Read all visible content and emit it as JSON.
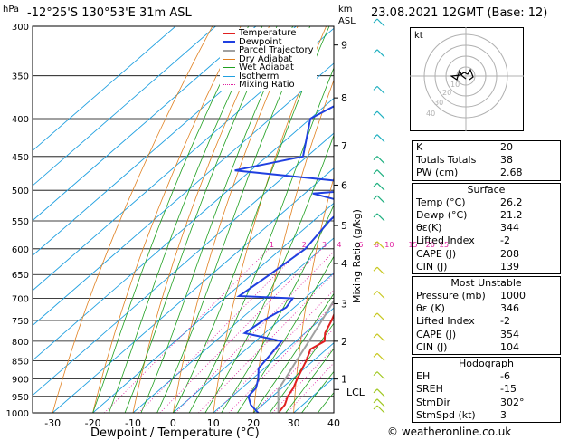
{
  "header": {
    "location": "-12°25'S 130°53'E 31m ASL",
    "date": "23.08.2021 12GMT (Base: 12)"
  },
  "axes": {
    "pressure_unit": "hPa",
    "height_unit": "km",
    "height_unit2": "ASL",
    "xlabel": "Dewpoint / Temperature (°C)",
    "mixing_label": "Mixing Ratio (g/kg)",
    "lcl_label": "LCL"
  },
  "legend": [
    {
      "label": "Temperature",
      "color": "#e02020"
    },
    {
      "label": "Dewpoint",
      "color": "#2040e0"
    },
    {
      "label": "Parcel Trajectory",
      "color": "#a0a0a0"
    },
    {
      "label": "Dry Adiabat",
      "color": "#e08020"
    },
    {
      "label": "Wet Adiabat",
      "color": "#20a020"
    },
    {
      "label": "Isotherm",
      "color": "#20a0e0"
    },
    {
      "label": "Mixing Ratio",
      "color": "#e020a0"
    }
  ],
  "chart_data": {
    "type": "line",
    "title": "Skew-T log-P diagram",
    "xlabel": "Dewpoint / Temperature (°C)",
    "ylabel": "hPa",
    "xlim": [
      -35,
      40
    ],
    "ylim": [
      1000,
      300
    ],
    "pressure_ticks": [
      300,
      350,
      400,
      450,
      500,
      550,
      600,
      650,
      700,
      750,
      800,
      850,
      900,
      950,
      1000
    ],
    "temp_ticks": [
      -30,
      -20,
      -10,
      0,
      10,
      20,
      30,
      40
    ],
    "height_ticks": [
      {
        "label": "9",
        "p": 318
      },
      {
        "label": "8",
        "p": 375
      },
      {
        "label": "7",
        "p": 435
      },
      {
        "label": "6",
        "p": 492
      },
      {
        "label": "5",
        "p": 558
      },
      {
        "label": "4",
        "p": 628
      },
      {
        "label": "3",
        "p": 712
      },
      {
        "label": "2",
        "p": 800
      },
      {
        "label": "1",
        "p": 900
      }
    ],
    "lcl_pressure": 930,
    "mixing_ratio_labels": [
      "1",
      "2",
      "3",
      "4",
      "6",
      "8",
      "10",
      "15",
      "20",
      "25"
    ],
    "series": [
      {
        "name": "Temperature",
        "points": [
          [
            1000,
            26.2
          ],
          [
            975,
            25.5
          ],
          [
            950,
            23.8
          ],
          [
            925,
            22.8
          ],
          [
            900,
            21.2
          ],
          [
            850,
            18.2
          ],
          [
            820,
            16.0
          ],
          [
            800,
            17.2
          ],
          [
            780,
            15.0
          ],
          [
            750,
            13.0
          ],
          [
            700,
            9.0
          ],
          [
            650,
            5.4
          ],
          [
            600,
            2.0
          ],
          [
            550,
            -2.5
          ],
          [
            520,
            -6.5
          ],
          [
            500,
            -6.0
          ],
          [
            470,
            -7.5
          ],
          [
            450,
            -9.5
          ],
          [
            400,
            -15.5
          ],
          [
            350,
            -23.5
          ],
          [
            300,
            -33.0
          ]
        ]
      },
      {
        "name": "Dewpoint",
        "points": [
          [
            1000,
            21.2
          ],
          [
            975,
            17.0
          ],
          [
            950,
            14.0
          ],
          [
            925,
            13.5
          ],
          [
            900,
            11.5
          ],
          [
            870,
            8.5
          ],
          [
            850,
            8.0
          ],
          [
            800,
            6.5
          ],
          [
            780,
            -5.0
          ],
          [
            750,
            -4.0
          ],
          [
            720,
            -2.0
          ],
          [
            700,
            -3.0
          ],
          [
            695,
            -17.0
          ],
          [
            650,
            -15.5
          ],
          [
            600,
            -14.0
          ],
          [
            550,
            -16.0
          ],
          [
            520,
            -16.5
          ],
          [
            505,
            -28.0
          ],
          [
            495,
            -8.5
          ],
          [
            470,
            -54.0
          ],
          [
            450,
            -41.0
          ],
          [
            400,
            -50.0
          ],
          [
            350,
            -42.0
          ],
          [
            330,
            -50.0
          ],
          [
            300,
            -49.0
          ]
        ]
      },
      {
        "name": "Parcel Trajectory",
        "points": [
          [
            1000,
            26.2
          ],
          [
            930,
            19.5
          ],
          [
            900,
            18.2
          ],
          [
            850,
            15.8
          ],
          [
            800,
            13.3
          ],
          [
            750,
            10.6
          ],
          [
            700,
            7.6
          ],
          [
            650,
            4.3
          ],
          [
            600,
            0.7
          ],
          [
            550,
            -3.3
          ],
          [
            500,
            -8.0
          ],
          [
            450,
            -13.3
          ]
        ]
      }
    ]
  },
  "hodograph": {
    "unit": "kt",
    "ring_labels": [
      "10",
      "20",
      "30",
      "40"
    ]
  },
  "indices": {
    "general": [
      {
        "label": "K",
        "value": "20"
      },
      {
        "label": "Totals Totals",
        "value": "38"
      },
      {
        "label": "PW (cm)",
        "value": "2.68"
      }
    ],
    "surface_title": "Surface",
    "surface": [
      {
        "label": "Temp (°C)",
        "value": "26.2"
      },
      {
        "label": "Dewp (°C)",
        "value": "21.2"
      },
      {
        "label": "θε(K)",
        "value": "344"
      },
      {
        "label": "Lifted Index",
        "value": "-2"
      },
      {
        "label": "CAPE (J)",
        "value": "208"
      },
      {
        "label": "CIN (J)",
        "value": "139"
      }
    ],
    "unstable_title": "Most Unstable",
    "unstable": [
      {
        "label": "Pressure (mb)",
        "value": "1000"
      },
      {
        "label": "θε (K)",
        "value": "346"
      },
      {
        "label": "Lifted Index",
        "value": "-2"
      },
      {
        "label": "CAPE (J)",
        "value": "354"
      },
      {
        "label": "CIN (J)",
        "value": "104"
      }
    ],
    "hodograph_title": "Hodograph",
    "hodo": [
      {
        "label": "EH",
        "value": "-6"
      },
      {
        "label": "SREH",
        "value": "-15"
      },
      {
        "label": "StmDir",
        "value": "302°"
      },
      {
        "label": "StmSpd (kt)",
        "value": "3"
      }
    ]
  },
  "credit": "© weatheronline.co.uk"
}
